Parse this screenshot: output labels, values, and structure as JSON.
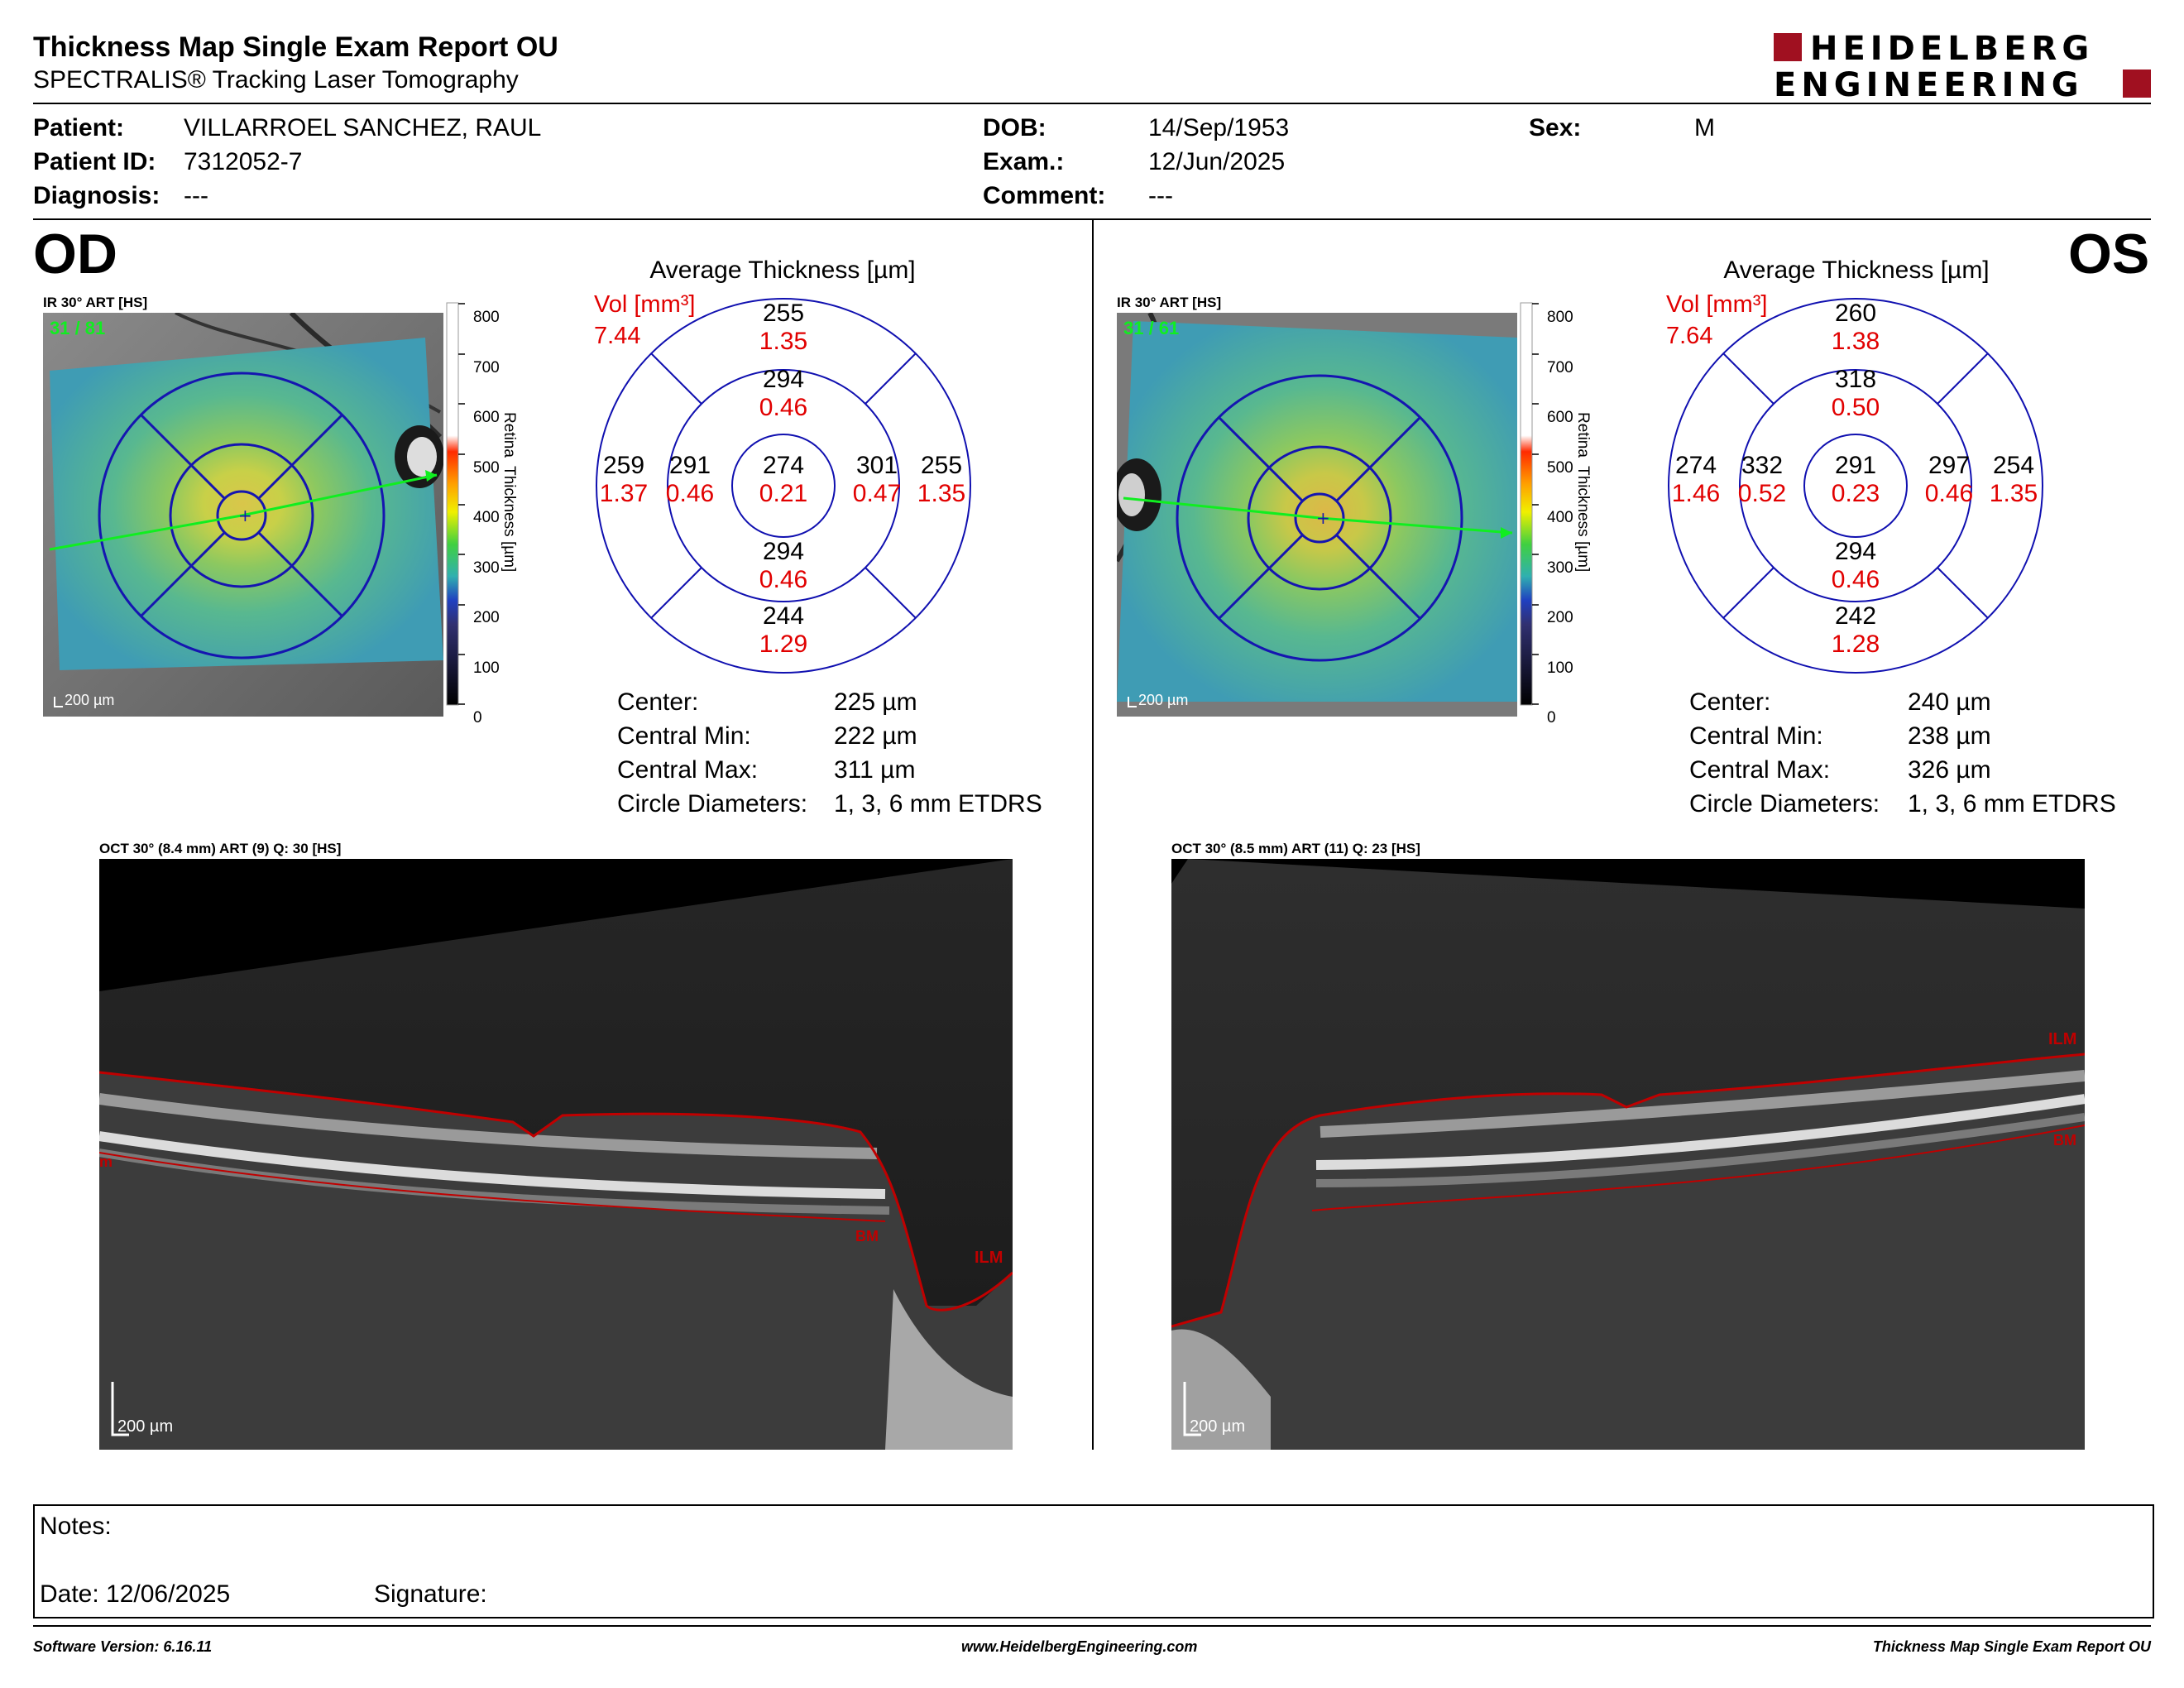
{
  "header": {
    "title": "Thickness Map Single Exam Report OU",
    "subtitle": "SPECTRALIS® Tracking Laser Tomography",
    "logo_line1": "HEIDELBERG",
    "logo_line2": "ENGINEERING"
  },
  "patient": {
    "patient_label": "Patient:",
    "patient_value": "VILLARROEL SANCHEZ, RAUL",
    "id_label": "Patient ID:",
    "id_value": "7312052-7",
    "diagnosis_label": "Diagnosis:",
    "diagnosis_value": "---",
    "dob_label": "DOB:",
    "dob_value": "14/Sep/1953",
    "exam_label": "Exam.:",
    "exam_value": "12/Jun/2025",
    "comment_label": "Comment:",
    "comment_value": "---",
    "sex_label": "Sex:",
    "sex_value": "M"
  },
  "od": {
    "eye": "OD",
    "ir_caption": "IR 30° ART [HS]",
    "frames": "31 / 81",
    "scale_bar": "200 µm",
    "colorbar_ticks": [
      "800",
      "700",
      "600",
      "500",
      "400",
      "300",
      "200",
      "100",
      "0"
    ],
    "colorbar_label": "Retina  Thickness [µm]",
    "grid_title": "Average Thickness [µm]",
    "vol_label": "Vol [mm³]",
    "vol_total": "7.44",
    "sectors": {
      "outer_superior": {
        "t": "255",
        "v": "1.35"
      },
      "inner_superior": {
        "t": "294",
        "v": "0.46"
      },
      "center": {
        "t": "274",
        "v": "0.21"
      },
      "outer_temporal": {
        "t": "259",
        "v": "1.37"
      },
      "inner_temporal": {
        "t": "291",
        "v": "0.46"
      },
      "inner_nasal": {
        "t": "301",
        "v": "0.47"
      },
      "outer_nasal": {
        "t": "255",
        "v": "1.35"
      },
      "inner_inferior": {
        "t": "294",
        "v": "0.46"
      },
      "outer_inferior": {
        "t": "244",
        "v": "1.29"
      }
    },
    "stats": [
      {
        "label": "Center:",
        "value": "225 µm"
      },
      {
        "label": "Central Min:",
        "value": "222 µm"
      },
      {
        "label": "Central Max:",
        "value": "311 µm"
      },
      {
        "label": "Circle Diameters:",
        "value": "1, 3, 6 mm ETDRS"
      }
    ],
    "oct_caption": "OCT 30° (8.4 mm) ART (9) Q: 30 [HS]",
    "oct_scale": "200 µm",
    "layer_ilm": "ILM",
    "layer_bm": "BM",
    "layer_bm_partial": "m"
  },
  "os": {
    "eye": "OS",
    "ir_caption": "IR 30° ART [HS]",
    "frames": "31 / 61",
    "scale_bar": "200 µm",
    "colorbar_ticks": [
      "800",
      "700",
      "600",
      "500",
      "400",
      "300",
      "200",
      "100",
      "0"
    ],
    "colorbar_label": "Retina  Thickness [µm]",
    "grid_title": "Average Thickness [µm]",
    "vol_label": "Vol [mm³]",
    "vol_total": "7.64",
    "sectors": {
      "outer_superior": {
        "t": "260",
        "v": "1.38"
      },
      "inner_superior": {
        "t": "318",
        "v": "0.50"
      },
      "center": {
        "t": "291",
        "v": "0.23"
      },
      "outer_temporal": {
        "t": "274",
        "v": "1.46"
      },
      "inner_temporal": {
        "t": "332",
        "v": "0.52"
      },
      "inner_nasal": {
        "t": "297",
        "v": "0.46"
      },
      "outer_nasal": {
        "t": "254",
        "v": "1.35"
      },
      "inner_inferior": {
        "t": "294",
        "v": "0.46"
      },
      "outer_inferior": {
        "t": "242",
        "v": "1.28"
      }
    },
    "stats": [
      {
        "label": "Center:",
        "value": "240 µm"
      },
      {
        "label": "Central Min:",
        "value": "238 µm"
      },
      {
        "label": "Central Max:",
        "value": "326 µm"
      },
      {
        "label": "Circle Diameters:",
        "value": "1, 3, 6 mm ETDRS"
      }
    ],
    "oct_caption": "OCT 30° (8.5 mm) ART (11) Q: 23 [HS]",
    "oct_scale": "200 µm",
    "layer_ilm": "ILM",
    "layer_bm": "BM"
  },
  "notes": {
    "notes_label": "Notes:",
    "date_label": "Date: 12/06/2025",
    "signature_label": "Signature:"
  },
  "footer": {
    "software": "Software Version: 6.16.11",
    "website": "www.HeidelbergEngineering.com",
    "report_name": "Thickness Map Single Exam Report OU"
  },
  "colors": {
    "grid_blue": "#1010b0",
    "volume_red": "#e10000",
    "logo_red": "#a01020",
    "ilm_red": "#c00000"
  }
}
